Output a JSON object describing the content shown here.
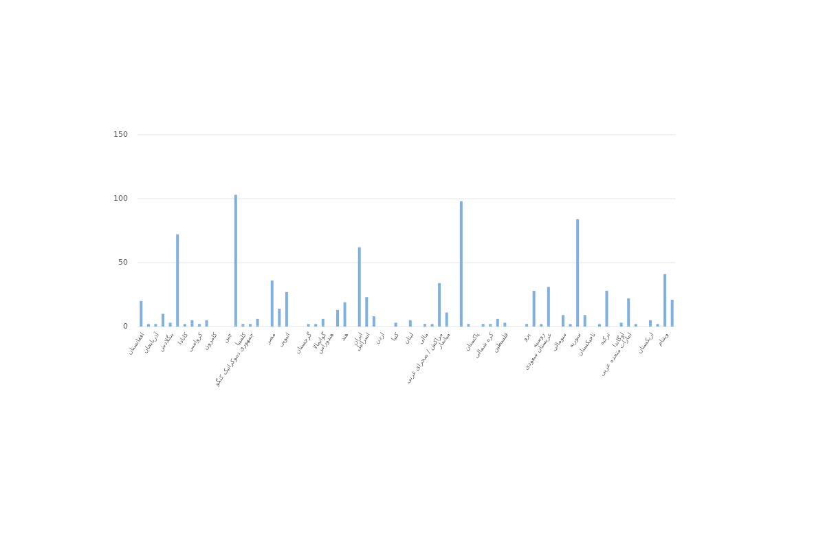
{
  "chart_data": {
    "type": "bar",
    "color": "#7fb0e0",
    "grid": true,
    "ylim": [
      0,
      150
    ],
    "yticks": [
      0,
      50,
      100,
      150
    ],
    "categories": [
      "افغانستان",
      null,
      "آذربایجان",
      null,
      "بنگلادش",
      null,
      "کانادا",
      null,
      "کرواسی",
      null,
      "کامرون",
      null,
      "چین",
      null,
      "کلمبیا",
      "جمهوری دموکراتیک کنگو",
      null,
      null,
      "مصر",
      null,
      "اتیوپی",
      null,
      null,
      "گرجستان",
      null,
      "گواتمالا",
      "هندوراس",
      null,
      "هند",
      null,
      "ایران",
      "اسرائیل",
      null,
      "اردن",
      null,
      "کنیا",
      null,
      "لبنان",
      null,
      "مالی",
      null,
      "مراکش / صحرای غربی",
      "میانمار",
      null,
      null,
      null,
      "پاکستان",
      null,
      "کره شمالی",
      null,
      "فلسطین",
      null,
      null,
      "پرو",
      null,
      "روسیه",
      "عربستان سعودی",
      null,
      "سومالی",
      null,
      "سوریه",
      null,
      "تاجیکستان",
      null,
      "ترکیه",
      null,
      "اوگاندا",
      "امارات متحده عربی",
      null,
      null,
      "ازبکستان",
      null,
      "ویتنام",
      null
    ],
    "values": [
      20,
      2,
      2,
      10,
      3,
      72,
      2,
      5,
      2,
      5,
      0,
      0,
      0,
      103,
      2,
      2,
      6,
      0,
      36,
      14,
      27,
      0,
      0,
      2,
      2,
      6,
      0,
      13,
      19,
      0,
      62,
      23,
      8,
      0,
      0,
      3,
      0,
      5,
      0,
      2,
      2,
      34,
      11,
      0,
      98,
      2,
      0,
      2,
      2,
      6,
      3,
      0,
      0,
      2,
      28,
      2,
      31,
      0,
      9,
      2,
      84,
      9,
      0,
      2,
      28,
      0,
      3,
      22,
      2,
      0,
      5,
      2,
      41,
      21
    ]
  }
}
